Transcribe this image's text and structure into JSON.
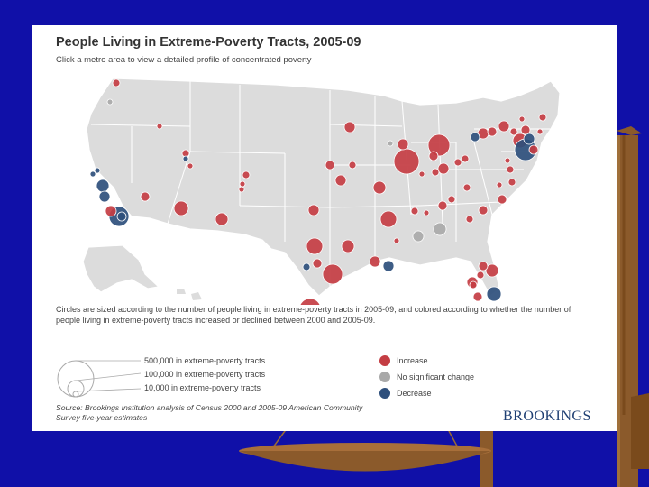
{
  "title": "People Living in Extreme-Poverty Tracts, 2005-09",
  "subtitle": "Click a metro area to view a detailed profile of concentrated poverty",
  "description": "Circles are sized according to the number of people living in extreme-poverty tracts in 2005-09, and colored according to whether the number of people living in extreme-poverty tracts increased or declined between 2000 and 2005-09.",
  "size_legend": [
    "500,000 in extreme-poverty tracts",
    "100,000 in extreme-poverty tracts",
    "10,000 in extreme-poverty tracts"
  ],
  "color_legend": [
    {
      "label": "Increase",
      "color": "#c43d43"
    },
    {
      "label": "No significant change",
      "color": "#a9a9a9"
    },
    {
      "label": "Decrease",
      "color": "#2e4f7c"
    }
  ],
  "source": "Source: Brookings Institution analysis of Census 2000 and 2005-09 American Community Survey five-year estimates",
  "brand": "BROOKINGS"
}
